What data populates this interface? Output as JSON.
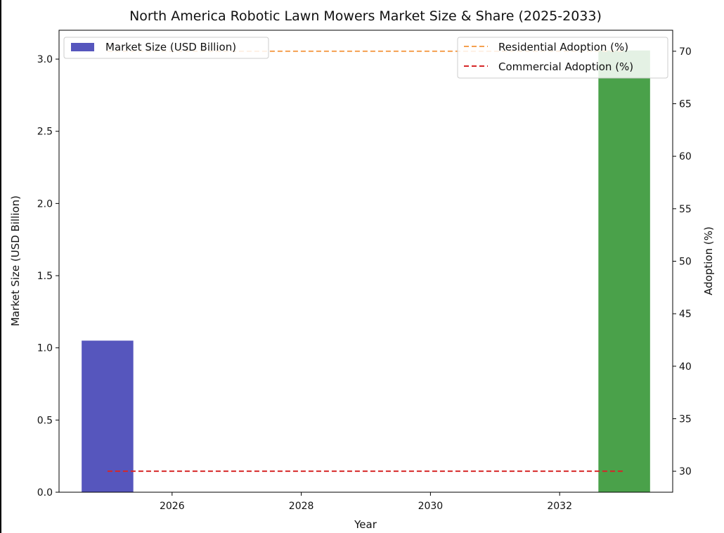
{
  "chart_data": {
    "type": "bar+line",
    "title": "North America Robotic Lawn Mowers Market Size & Share (2025-2033)",
    "xlabel": "Year",
    "ylabel_left": "Market Size (USD Billion)",
    "ylabel_right": "Adoption (%)",
    "x_ticks": [
      2026,
      2028,
      2030,
      2032
    ],
    "x_range": [
      2024.25,
      2033.75
    ],
    "y_left_ticks": [
      "0.0",
      "0.5",
      "1.0",
      "1.5",
      "2.0",
      "2.5",
      "3.0"
    ],
    "y_left_range": [
      0,
      3.2
    ],
    "y_right_ticks": [
      "30",
      "35",
      "40",
      "45",
      "50",
      "55",
      "60",
      "65",
      "70"
    ],
    "y_right_range": [
      28.0,
      72.0
    ],
    "grid": false,
    "bars": {
      "name": "Market Size (USD Billion)",
      "points": [
        {
          "x": 2025,
          "value": 1.05,
          "color": "#5656bd"
        },
        {
          "x": 2033,
          "value": 3.06,
          "color": "#4aa14a"
        }
      ]
    },
    "series": [
      {
        "name": "Residential Adoption (%)",
        "color": "#f5a050",
        "style": "dashed",
        "x": [
          2025,
          2033
        ],
        "values": [
          70,
          70
        ]
      },
      {
        "name": "Commercial Adoption (%)",
        "color": "#d62728",
        "style": "dashed",
        "x": [
          2025,
          2033
        ],
        "values": [
          30,
          30
        ]
      }
    ],
    "legends": {
      "left": {
        "placement": "top-left",
        "entries": [
          "Market Size (USD Billion)"
        ]
      },
      "right": {
        "placement": "top-right",
        "entries": [
          "Residential Adoption (%)",
          "Commercial Adoption (%)"
        ]
      }
    }
  }
}
